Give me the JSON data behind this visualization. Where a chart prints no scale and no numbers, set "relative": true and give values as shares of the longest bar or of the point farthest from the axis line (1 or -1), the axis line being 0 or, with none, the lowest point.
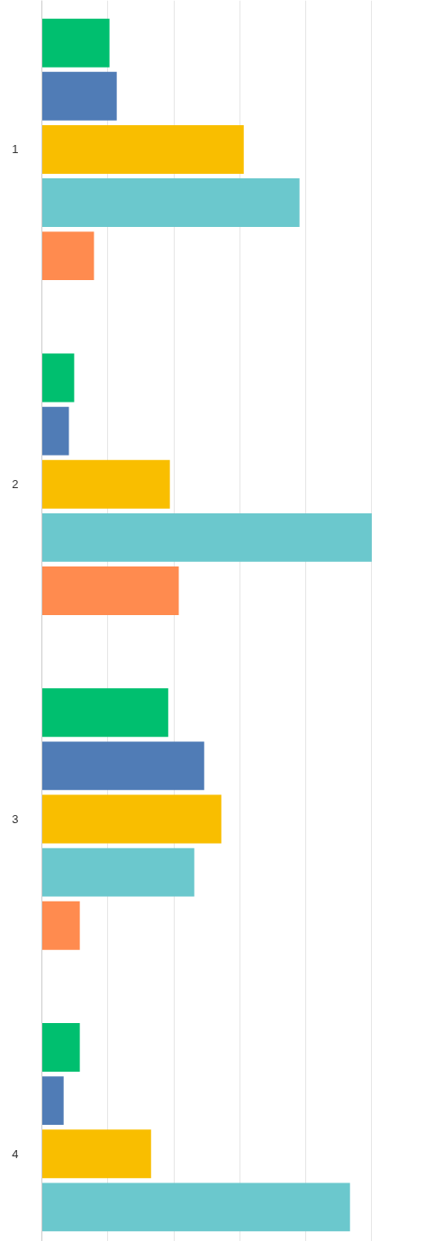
{
  "chart_data": {
    "type": "bar",
    "orientation": "horizontal",
    "relative": true,
    "grid": "x",
    "categories": [
      "1",
      "2",
      "3",
      "4"
    ],
    "series": [
      {
        "color": "#00bf6f",
        "values": [
          0.205,
          0.098,
          0.383,
          0.115
        ]
      },
      {
        "color": "#507cb6",
        "values": [
          0.227,
          0.082,
          0.492,
          0.066
        ]
      },
      {
        "color": "#f9be00",
        "values": [
          0.612,
          0.388,
          0.544,
          0.331
        ]
      },
      {
        "color": "#6bc8cd",
        "values": [
          0.781,
          1.0,
          0.462,
          0.934
        ]
      },
      {
        "color": "#ff8b4f",
        "values": [
          0.158,
          0.415,
          0.115,
          null
        ]
      }
    ]
  }
}
